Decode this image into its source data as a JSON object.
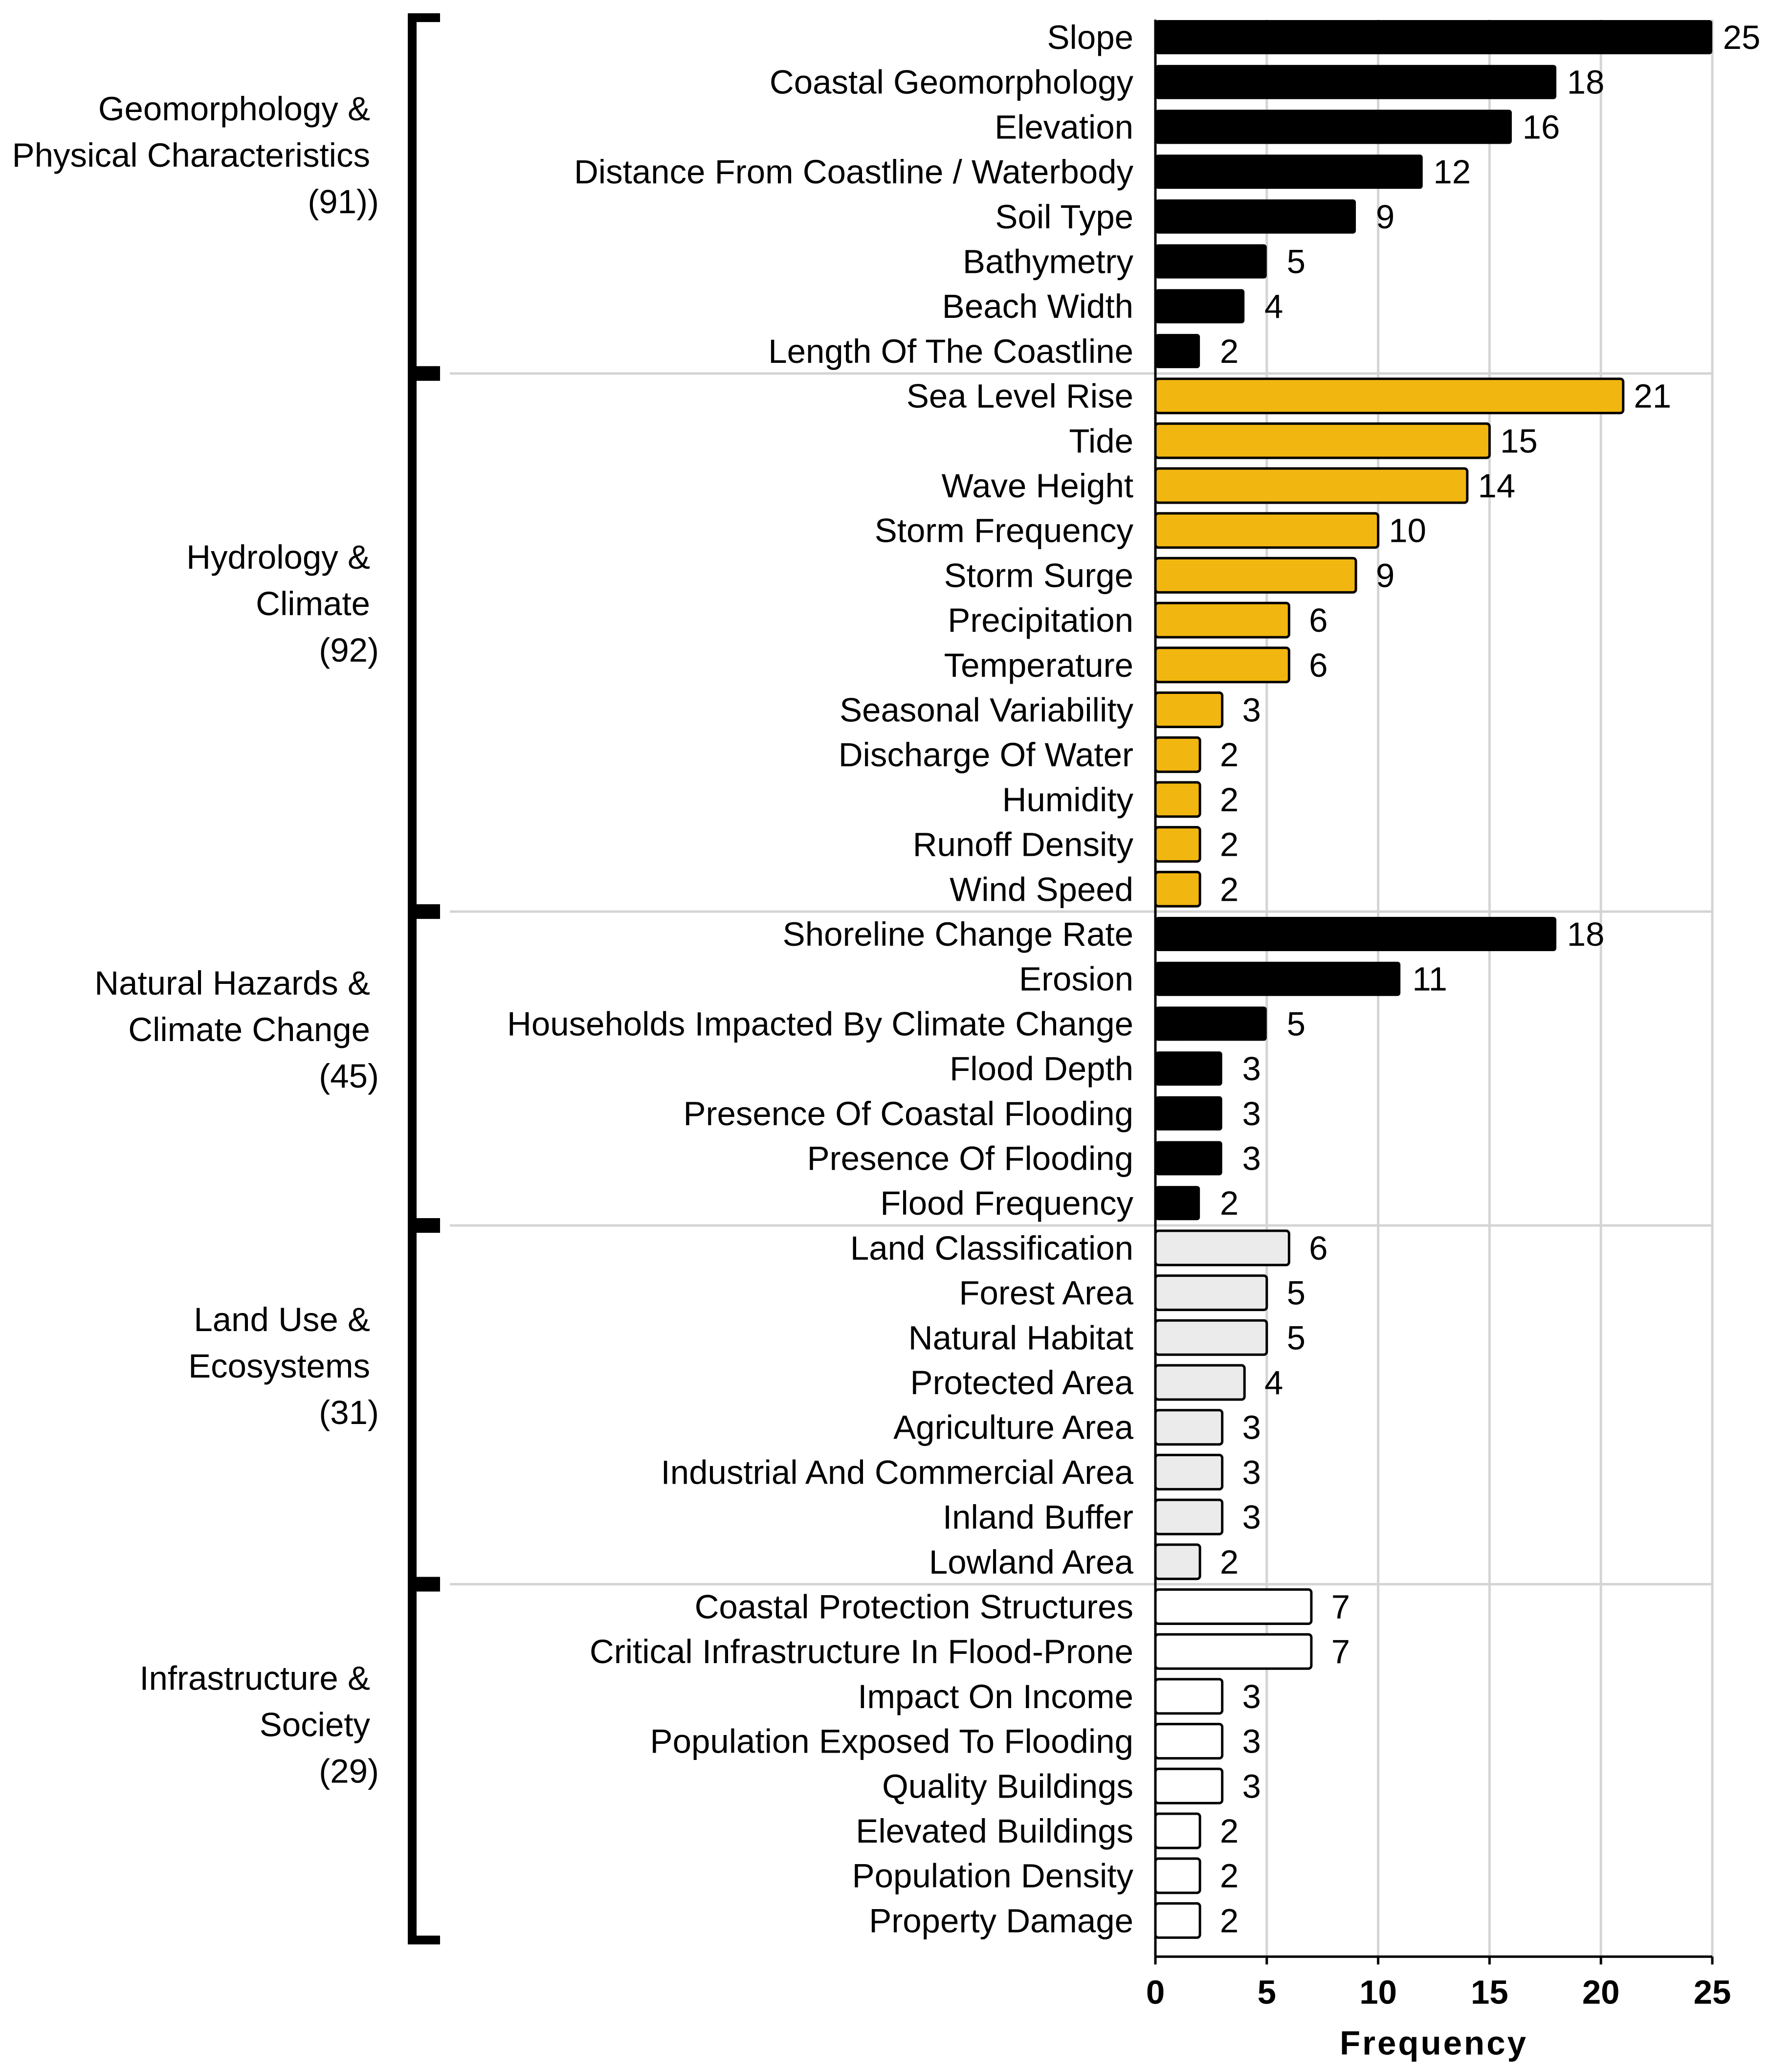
{
  "chart_data": {
    "type": "bar",
    "orientation": "horizontal",
    "title": "",
    "xlabel": "Frequency",
    "ylabel": "",
    "xlim": [
      0,
      25
    ],
    "xticks": [
      "0",
      "5",
      "10",
      "15",
      "20",
      "25"
    ],
    "grid": "vertical",
    "groups": [
      {
        "name": "Geomorphology & Physical Characteristics",
        "label_lines": [
          "Geomorphology &",
          "Physical Characteristics",
          "(91))"
        ],
        "color": "#000000",
        "items": [
          {
            "label": "Slope",
            "value": 25
          },
          {
            "label": "Coastal Geomorphology",
            "value": 18
          },
          {
            "label": "Elevation",
            "value": 16
          },
          {
            "label": "Distance From Coastline / Waterbody",
            "value": 12
          },
          {
            "label": "Soil Type",
            "value": 9
          },
          {
            "label": "Bathymetry",
            "value": 5
          },
          {
            "label": "Beach Width",
            "value": 4
          },
          {
            "label": "Length Of The Coastline",
            "value": 2
          }
        ]
      },
      {
        "name": "Hydrology & Climate",
        "label_lines": [
          "Hydrology &",
          "Climate",
          "(92)"
        ],
        "color": "#F2B610",
        "items": [
          {
            "label": "Sea Level Rise",
            "value": 21
          },
          {
            "label": "Tide",
            "value": 15
          },
          {
            "label": "Wave Height",
            "value": 14
          },
          {
            "label": "Storm Frequency",
            "value": 10
          },
          {
            "label": "Storm Surge",
            "value": 9
          },
          {
            "label": "Precipitation",
            "value": 6
          },
          {
            "label": "Temperature",
            "value": 6
          },
          {
            "label": "Seasonal Variability",
            "value": 3
          },
          {
            "label": "Discharge Of Water",
            "value": 2
          },
          {
            "label": "Humidity",
            "value": 2
          },
          {
            "label": "Runoff Density",
            "value": 2
          },
          {
            "label": "Wind Speed",
            "value": 2
          }
        ]
      },
      {
        "name": "Natural Hazards & Climate Change",
        "label_lines": [
          "Natural Hazards &",
          "Climate Change",
          "(45)"
        ],
        "color": "#000000",
        "items": [
          {
            "label": "Shoreline Change Rate",
            "value": 18
          },
          {
            "label": "Erosion",
            "value": 11
          },
          {
            "label": "Households Impacted By Climate Change",
            "value": 5
          },
          {
            "label": "Flood Depth",
            "value": 3
          },
          {
            "label": "Presence Of Coastal Flooding",
            "value": 3
          },
          {
            "label": "Presence Of Flooding",
            "value": 3
          },
          {
            "label": "Flood Frequency",
            "value": 2
          }
        ]
      },
      {
        "name": "Land Use & Ecosystems",
        "label_lines": [
          "Land Use &",
          "Ecosystems",
          "(31)"
        ],
        "color": "#EBEBEB",
        "items": [
          {
            "label": "Land Classification",
            "value": 6
          },
          {
            "label": "Forest Area",
            "value": 5
          },
          {
            "label": "Natural Habitat",
            "value": 5
          },
          {
            "label": "Protected Area",
            "value": 4
          },
          {
            "label": "Agriculture Area",
            "value": 3
          },
          {
            "label": "Industrial And Commercial Area",
            "value": 3
          },
          {
            "label": "Inland Buffer",
            "value": 3
          },
          {
            "label": "Lowland Area",
            "value": 2
          }
        ]
      },
      {
        "name": "Infrastructure & Society",
        "label_lines": [
          "Infrastructure &",
          "Society",
          "(29)"
        ],
        "color": "#FFFFFF",
        "items": [
          {
            "label": "Coastal Protection Structures",
            "value": 7
          },
          {
            "label": "Critical Infrastructure In Flood-Prone",
            "value": 7
          },
          {
            "label": "Impact On Income",
            "value": 3
          },
          {
            "label": "Population Exposed To Flooding",
            "value": 3
          },
          {
            "label": "Quality Buildings",
            "value": 3
          },
          {
            "label": "Elevated Buildings",
            "value": 2
          },
          {
            "label": "Population Density",
            "value": 2
          },
          {
            "label": "Property Damage",
            "value": 2
          }
        ]
      }
    ]
  }
}
